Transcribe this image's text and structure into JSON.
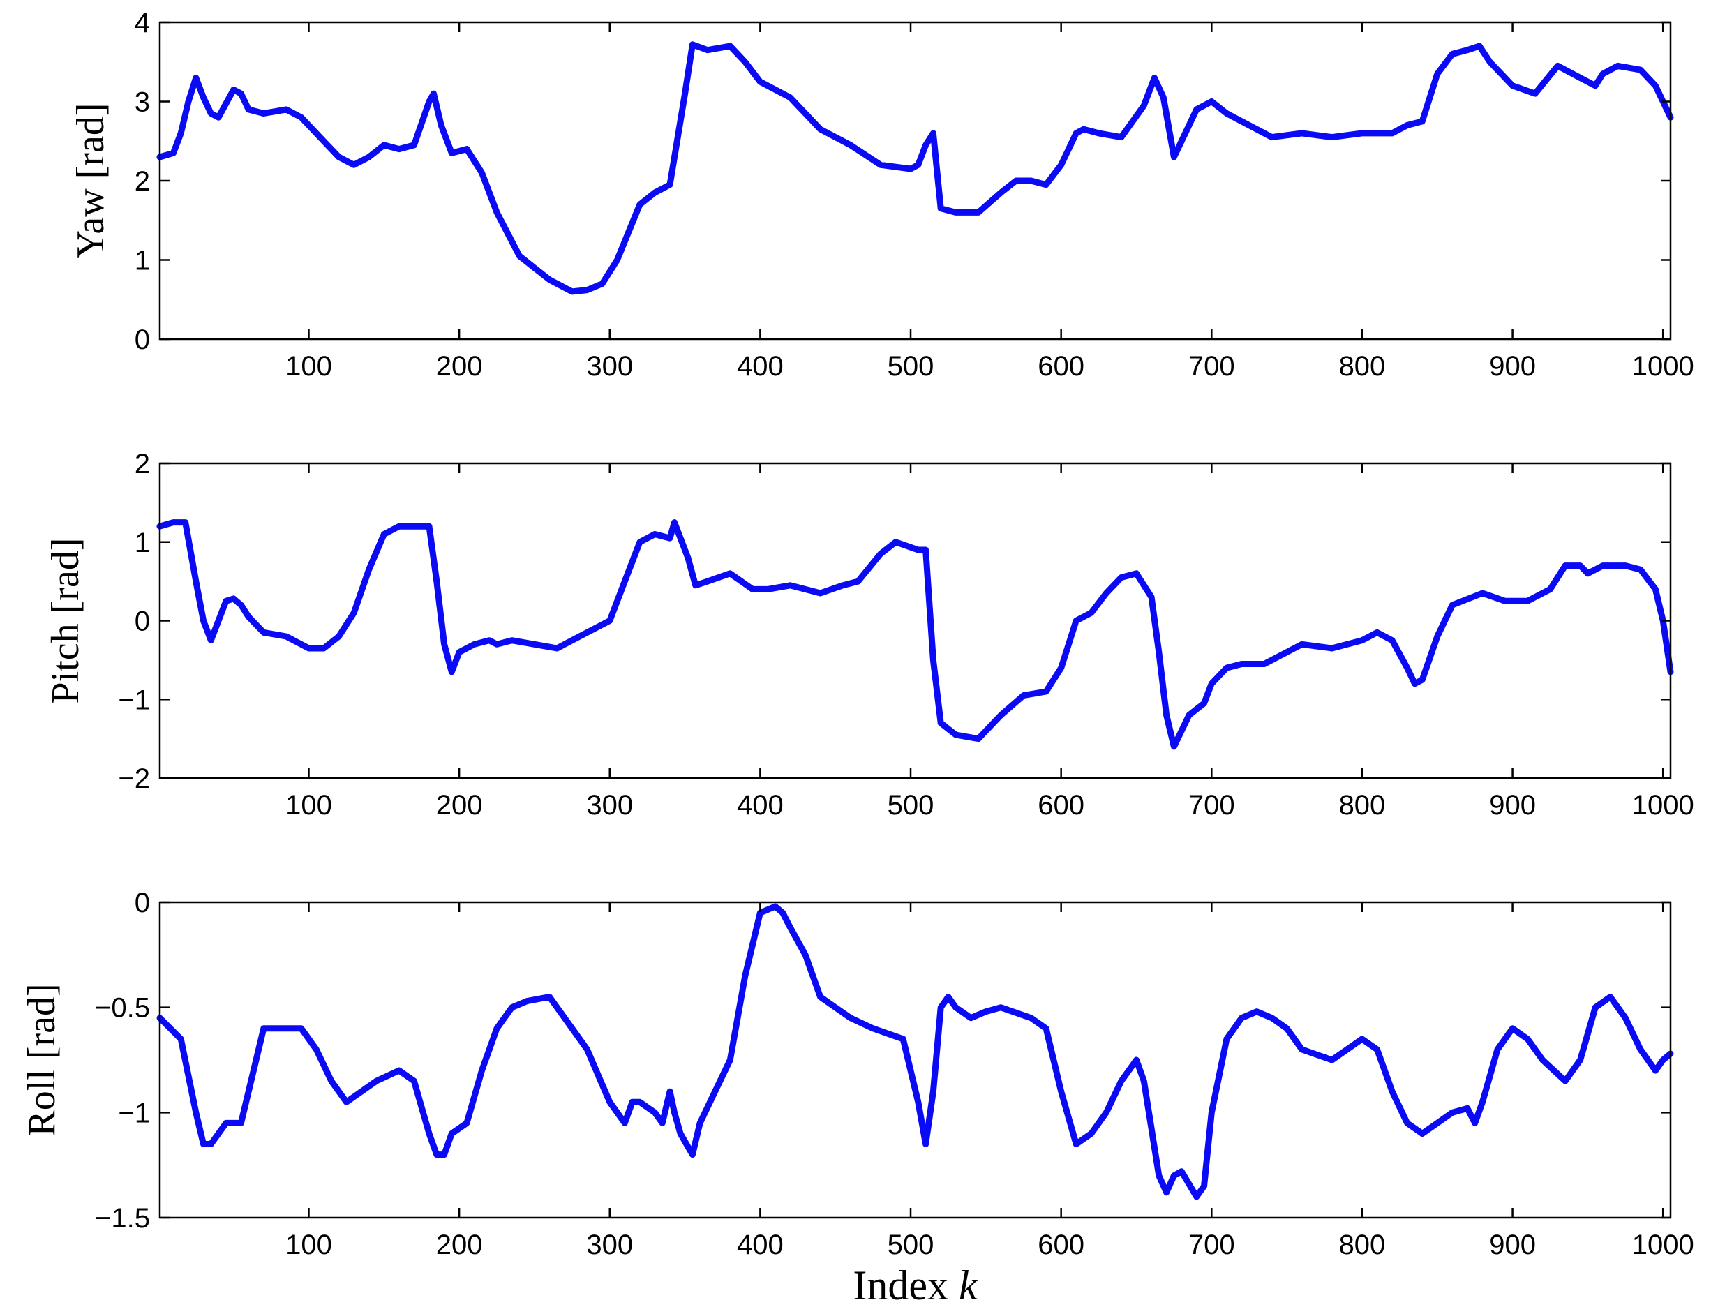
{
  "colors": {
    "series": "#0a0af5",
    "axis": "#000000"
  },
  "chart_data": [
    {
      "type": "line",
      "ylabel": "Yaw [rad]",
      "xlabel": "",
      "xlim": [
        1,
        1005
      ],
      "ylim": [
        0,
        4
      ],
      "xticks": [
        100,
        200,
        300,
        400,
        500,
        600,
        700,
        800,
        900,
        1000
      ],
      "xtick_labels": [
        "100",
        "200",
        "300",
        "400",
        "500",
        "600",
        "700",
        "800",
        "900",
        "1000"
      ],
      "yticks": [
        0,
        1,
        2,
        3,
        4
      ],
      "ytick_labels": [
        "0",
        "1",
        "2",
        "3",
        "4"
      ],
      "series": [
        {
          "x": [
            1,
            10,
            15,
            20,
            25,
            30,
            35,
            40,
            50,
            55,
            60,
            70,
            85,
            95,
            110,
            120,
            130,
            140,
            150,
            160,
            170,
            180,
            183,
            188,
            195,
            205,
            215,
            225,
            240,
            250,
            260,
            275,
            285,
            295,
            305,
            320,
            330,
            340,
            350,
            355,
            365,
            380,
            390,
            400,
            420,
            440,
            460,
            480,
            500,
            505,
            510,
            515,
            520,
            530,
            545,
            560,
            570,
            580,
            590,
            600,
            610,
            615,
            625,
            640,
            655,
            662,
            668,
            675,
            680,
            690,
            700,
            710,
            720,
            740,
            760,
            780,
            800,
            820,
            830,
            840,
            850,
            860,
            870,
            878,
            885,
            900,
            915,
            930,
            945,
            955,
            960,
            970,
            985,
            995,
            1000,
            1005
          ],
          "y": [
            2.3,
            2.35,
            2.6,
            3.0,
            3.3,
            3.05,
            2.85,
            2.8,
            3.15,
            3.1,
            2.9,
            2.85,
            2.9,
            2.8,
            2.5,
            2.3,
            2.2,
            2.3,
            2.45,
            2.4,
            2.45,
            3.0,
            3.1,
            2.7,
            2.35,
            2.4,
            2.1,
            1.6,
            1.05,
            0.9,
            0.75,
            0.6,
            0.62,
            0.7,
            1.0,
            1.7,
            1.85,
            1.95,
            3.1,
            3.72,
            3.65,
            3.7,
            3.5,
            3.25,
            3.05,
            2.65,
            2.45,
            2.2,
            2.15,
            2.2,
            2.45,
            2.6,
            1.65,
            1.6,
            1.6,
            1.85,
            2.0,
            2.0,
            1.95,
            2.2,
            2.6,
            2.65,
            2.6,
            2.55,
            2.95,
            3.3,
            3.05,
            2.3,
            2.5,
            2.9,
            3.0,
            2.85,
            2.75,
            2.55,
            2.6,
            2.55,
            2.6,
            2.6,
            2.7,
            2.75,
            3.35,
            3.6,
            3.65,
            3.7,
            3.5,
            3.2,
            3.1,
            3.45,
            3.3,
            3.2,
            3.35,
            3.45,
            3.4,
            3.2,
            3.0,
            2.8
          ]
        }
      ]
    },
    {
      "type": "line",
      "ylabel": "Pitch [rad]",
      "xlabel": "",
      "xlim": [
        1,
        1005
      ],
      "ylim": [
        -2,
        2
      ],
      "xticks": [
        100,
        200,
        300,
        400,
        500,
        600,
        700,
        800,
        900,
        1000
      ],
      "xtick_labels": [
        "100",
        "200",
        "300",
        "400",
        "500",
        "600",
        "700",
        "800",
        "900",
        "1000"
      ],
      "yticks": [
        -2,
        -1,
        0,
        1,
        2
      ],
      "ytick_labels": [
        "−2",
        "−1",
        "0",
        "1",
        "2"
      ],
      "series": [
        {
          "x": [
            1,
            10,
            18,
            25,
            30,
            35,
            40,
            45,
            50,
            55,
            60,
            70,
            85,
            100,
            110,
            120,
            130,
            140,
            150,
            160,
            175,
            180,
            185,
            190,
            195,
            200,
            210,
            220,
            225,
            235,
            250,
            265,
            280,
            300,
            310,
            320,
            330,
            340,
            343,
            347,
            352,
            357,
            365,
            380,
            395,
            405,
            420,
            440,
            455,
            465,
            480,
            490,
            505,
            510,
            515,
            520,
            530,
            545,
            560,
            575,
            590,
            600,
            610,
            620,
            630,
            640,
            650,
            660,
            665,
            670,
            675,
            685,
            695,
            700,
            710,
            720,
            735,
            760,
            780,
            800,
            810,
            820,
            830,
            835,
            840,
            850,
            860,
            880,
            895,
            910,
            925,
            935,
            945,
            950,
            960,
            975,
            985,
            995,
            1000,
            1005
          ],
          "y": [
            1.2,
            1.25,
            1.25,
            0.5,
            0.0,
            -0.25,
            0.0,
            0.25,
            0.28,
            0.2,
            0.05,
            -0.15,
            -0.2,
            -0.35,
            -0.35,
            -0.2,
            0.1,
            0.65,
            1.1,
            1.2,
            1.2,
            1.2,
            0.5,
            -0.3,
            -0.65,
            -0.4,
            -0.3,
            -0.25,
            -0.3,
            -0.25,
            -0.3,
            -0.35,
            -0.2,
            0.0,
            0.5,
            1.0,
            1.1,
            1.05,
            1.25,
            1.05,
            0.8,
            0.45,
            0.5,
            0.6,
            0.4,
            0.4,
            0.45,
            0.35,
            0.45,
            0.5,
            0.85,
            1.0,
            0.9,
            0.9,
            -0.5,
            -1.3,
            -1.45,
            -1.5,
            -1.2,
            -0.95,
            -0.9,
            -0.6,
            0.0,
            0.1,
            0.35,
            0.55,
            0.6,
            0.3,
            -0.4,
            -1.2,
            -1.6,
            -1.2,
            -1.05,
            -0.8,
            -0.6,
            -0.55,
            -0.55,
            -0.3,
            -0.35,
            -0.25,
            -0.15,
            -0.25,
            -0.6,
            -0.8,
            -0.75,
            -0.2,
            0.2,
            0.35,
            0.25,
            0.25,
            0.4,
            0.7,
            0.7,
            0.6,
            0.7,
            0.7,
            0.65,
            0.4,
            0.0,
            -0.65
          ]
        }
      ]
    },
    {
      "type": "line",
      "ylabel": "Roll [rad]",
      "xlabel": "Index k",
      "xlim": [
        1,
        1005
      ],
      "ylim": [
        -1.5,
        0
      ],
      "xticks": [
        100,
        200,
        300,
        400,
        500,
        600,
        700,
        800,
        900,
        1000
      ],
      "xtick_labels": [
        "100",
        "200",
        "300",
        "400",
        "500",
        "600",
        "700",
        "800",
        "900",
        "1000"
      ],
      "yticks": [
        -1.5,
        -1,
        -0.5,
        0
      ],
      "ytick_labels": [
        "−1.5",
        "−1",
        "−0.5",
        "0"
      ],
      "series": [
        {
          "x": [
            1,
            15,
            25,
            30,
            35,
            40,
            45,
            55,
            60,
            65,
            70,
            75,
            85,
            95,
            105,
            115,
            125,
            135,
            145,
            160,
            170,
            180,
            185,
            190,
            195,
            205,
            215,
            225,
            235,
            245,
            260,
            270,
            285,
            300,
            310,
            315,
            320,
            330,
            335,
            340,
            343,
            347,
            355,
            360,
            370,
            380,
            390,
            400,
            410,
            415,
            420,
            430,
            440,
            450,
            460,
            475,
            495,
            505,
            510,
            515,
            520,
            525,
            530,
            540,
            550,
            560,
            580,
            590,
            600,
            610,
            620,
            630,
            640,
            650,
            655,
            665,
            670,
            675,
            680,
            690,
            695,
            700,
            710,
            720,
            730,
            740,
            750,
            760,
            780,
            800,
            810,
            820,
            830,
            840,
            850,
            860,
            870,
            875,
            880,
            890,
            900,
            910,
            920,
            935,
            945,
            955,
            965,
            975,
            985,
            995,
            1000,
            1005
          ],
          "y": [
            -0.55,
            -0.65,
            -1.0,
            -1.15,
            -1.15,
            -1.1,
            -1.05,
            -1.05,
            -0.9,
            -0.75,
            -0.6,
            -0.6,
            -0.6,
            -0.6,
            -0.7,
            -0.85,
            -0.95,
            -0.9,
            -0.85,
            -0.8,
            -0.85,
            -1.1,
            -1.2,
            -1.2,
            -1.1,
            -1.05,
            -0.8,
            -0.6,
            -0.5,
            -0.47,
            -0.45,
            -0.55,
            -0.7,
            -0.95,
            -1.05,
            -0.95,
            -0.95,
            -1.0,
            -1.05,
            -0.9,
            -1.0,
            -1.1,
            -1.2,
            -1.05,
            -0.9,
            -0.75,
            -0.35,
            -0.05,
            -0.02,
            -0.05,
            -0.12,
            -0.25,
            -0.45,
            -0.5,
            -0.55,
            -0.6,
            -0.65,
            -0.95,
            -1.15,
            -0.9,
            -0.5,
            -0.45,
            -0.5,
            -0.55,
            -0.52,
            -0.5,
            -0.55,
            -0.6,
            -0.9,
            -1.15,
            -1.1,
            -1.0,
            -0.85,
            -0.75,
            -0.85,
            -1.3,
            -1.38,
            -1.3,
            -1.28,
            -1.4,
            -1.35,
            -1.0,
            -0.65,
            -0.55,
            -0.52,
            -0.55,
            -0.6,
            -0.7,
            -0.75,
            -0.65,
            -0.7,
            -0.9,
            -1.05,
            -1.1,
            -1.05,
            -1.0,
            -0.98,
            -1.05,
            -0.95,
            -0.7,
            -0.6,
            -0.65,
            -0.75,
            -0.85,
            -0.75,
            -0.5,
            -0.45,
            -0.55,
            -0.7,
            -0.8,
            -0.75,
            -0.72
          ]
        }
      ]
    }
  ]
}
